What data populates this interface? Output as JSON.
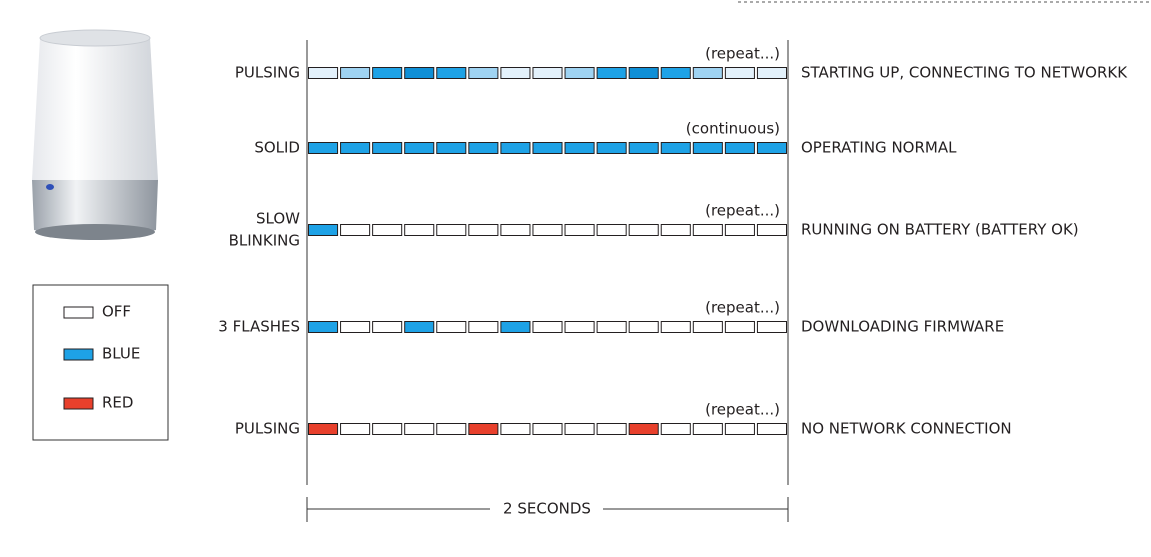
{
  "rows": [
    {
      "label": [
        "PULSING"
      ],
      "note": "(repeat...)",
      "description": "STARTING UP, CONNECTING TO NETWORKK",
      "cells": [
        "pale",
        "light",
        "blue",
        "deep",
        "blue",
        "light",
        "pale",
        "pale",
        "light",
        "blue",
        "deep",
        "blue",
        "light",
        "pale",
        "pale"
      ]
    },
    {
      "label": [
        "SOLID"
      ],
      "note": "(continuous)",
      "description": "OPERATING NORMAL",
      "cells": [
        "blue",
        "blue",
        "blue",
        "blue",
        "blue",
        "blue",
        "blue",
        "blue",
        "blue",
        "blue",
        "blue",
        "blue",
        "blue",
        "blue",
        "blue"
      ]
    },
    {
      "label": [
        "SLOW",
        "BLINKING"
      ],
      "note": "(repeat...)",
      "description": "RUNNING ON BATTERY (BATTERY OK)",
      "cells": [
        "blue",
        "off",
        "off",
        "off",
        "off",
        "off",
        "off",
        "off",
        "off",
        "off",
        "off",
        "off",
        "off",
        "off",
        "off"
      ]
    },
    {
      "label": [
        "3 FLASHES"
      ],
      "note": "(repeat...)",
      "description": "DOWNLOADING FIRMWARE",
      "cells": [
        "blue",
        "off",
        "off",
        "blue",
        "off",
        "off",
        "blue",
        "off",
        "off",
        "off",
        "off",
        "off",
        "off",
        "off",
        "off"
      ]
    },
    {
      "label": [
        "PULSING"
      ],
      "note": "(repeat...)",
      "description": "NO NETWORK CONNECTION",
      "cells": [
        "red",
        "off",
        "off",
        "off",
        "off",
        "red",
        "off",
        "off",
        "off",
        "off",
        "red",
        "off",
        "off",
        "off",
        "off"
      ]
    }
  ],
  "legend": [
    {
      "key": "off",
      "label": "OFF"
    },
    {
      "key": "blue",
      "label": "BLUE"
    },
    {
      "key": "red",
      "label": "RED"
    }
  ],
  "duration": "2 SECONDS"
}
